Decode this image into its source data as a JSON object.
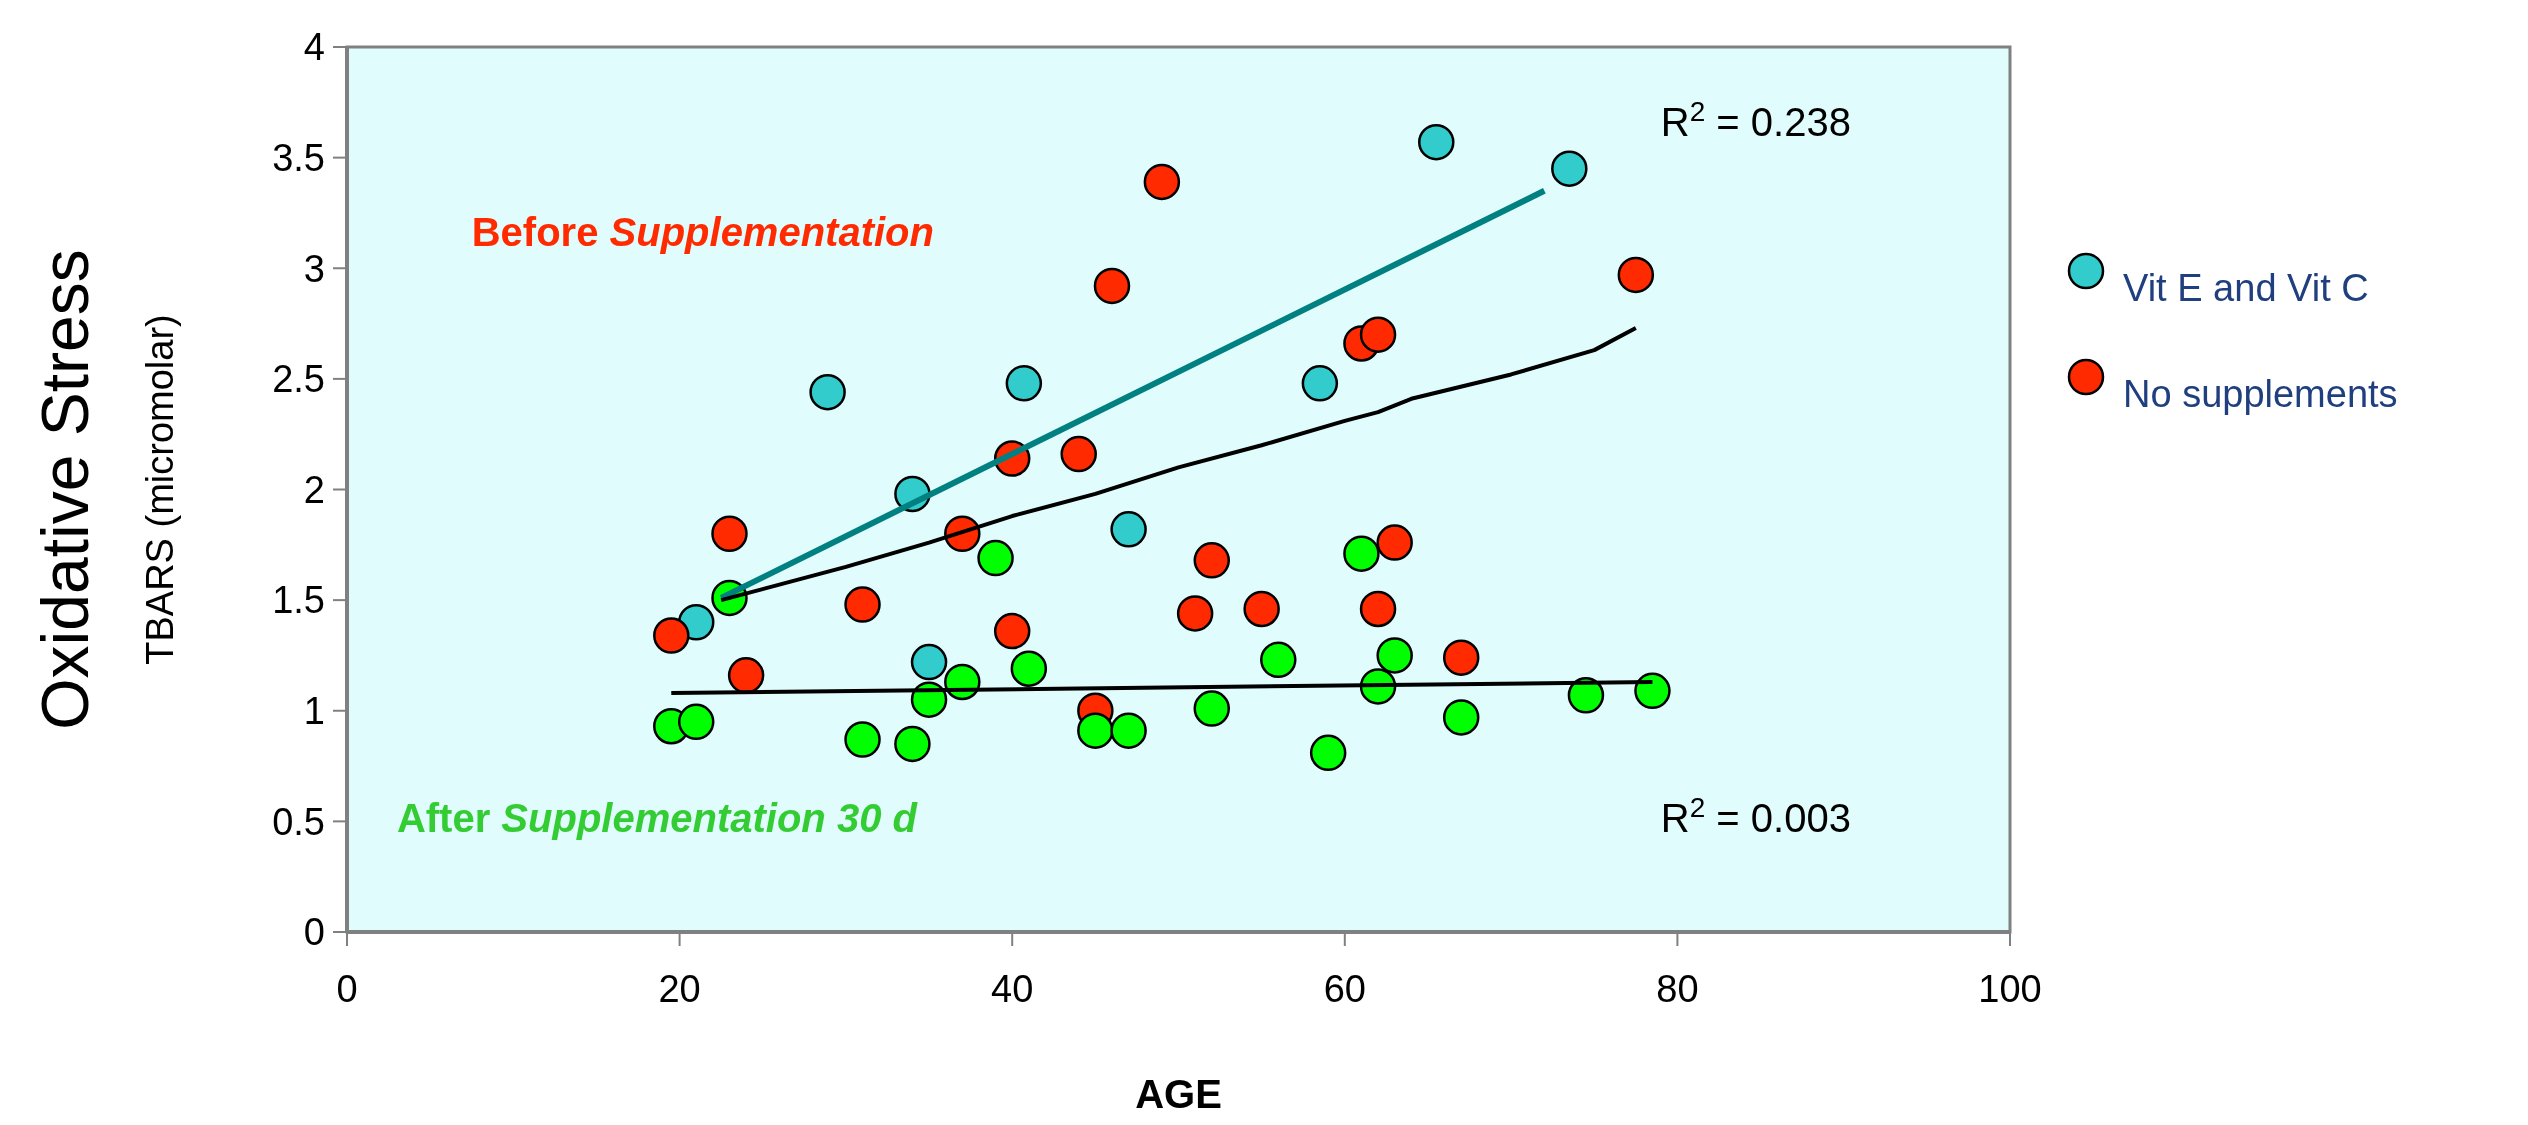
{
  "chart_data": {
    "type": "scatter",
    "xlabel": "AGE",
    "ylabel": "Oxidative Stress\nTBARS (micromolar)",
    "xlim": [
      0,
      100
    ],
    "xticks": [
      0,
      20,
      40,
      60,
      80,
      100
    ],
    "ylim": [
      0,
      4
    ],
    "yticks": [
      0,
      0.5,
      1,
      1.5,
      2,
      2.5,
      3,
      3.5,
      4
    ],
    "grid": false,
    "legend": "right",
    "marker": "circle",
    "series": [
      {
        "name": "Vit E and Vit C",
        "color": "#33cccc",
        "x": [
          28.9,
          40.7,
          34,
          47,
          58.5,
          65.5,
          73.5,
          21,
          35
        ],
        "values": [
          2.44,
          2.48,
          1.98,
          1.82,
          2.48,
          3.57,
          3.45,
          1.4,
          1.22
        ]
      },
      {
        "name": "No supplements",
        "color": "#ff2a00",
        "x": [
          19.5,
          23,
          24,
          31,
          37,
          40,
          40,
          44,
          45,
          46,
          49,
          51,
          52,
          55,
          61,
          62,
          62,
          63,
          67,
          77.5
        ],
        "values": [
          1.34,
          1.8,
          1.16,
          1.48,
          1.8,
          2.14,
          1.36,
          2.16,
          1.0,
          2.92,
          3.39,
          1.44,
          1.68,
          1.46,
          2.66,
          2.7,
          1.46,
          1.76,
          1.24,
          2.97
        ]
      },
      {
        "color": "#00ff00",
        "x": [
          19.5,
          21,
          23,
          31,
          34,
          35,
          37,
          39,
          41,
          45,
          47,
          52,
          56,
          59,
          61,
          62,
          63,
          67,
          74.5,
          78.5
        ],
        "values": [
          0.93,
          0.95,
          1.51,
          0.87,
          0.85,
          1.05,
          1.13,
          1.69,
          1.19,
          0.91,
          0.91,
          1.01,
          1.23,
          0.81,
          1.71,
          1.11,
          1.25,
          0.97,
          1.07,
          1.09
        ]
      },
      {
        "type": "line",
        "color": "#008080",
        "marker": "none",
        "x": [
          22.5,
          72
        ],
        "values": [
          1.51,
          3.35
        ]
      },
      {
        "type": "line",
        "color": "#000000",
        "marker": "none",
        "x": [
          22.5,
          30,
          35,
          40,
          45,
          50,
          55,
          60,
          62,
          64,
          70,
          75,
          77.5
        ],
        "values": [
          1.5,
          1.65,
          1.76,
          1.88,
          1.98,
          2.1,
          2.2,
          2.31,
          2.35,
          2.41,
          2.52,
          2.63,
          2.73
        ]
      },
      {
        "type": "line",
        "color": "#000000",
        "marker": "none",
        "x": [
          19.5,
          78.5
        ],
        "values": [
          1.08,
          1.13
        ]
      }
    ],
    "annotations": [
      "Before Supplementation",
      "After Supplementation 30 d",
      "R$^{2}$ = 0.238",
      "R$^{2}$ = 0.003"
    ]
  }
}
